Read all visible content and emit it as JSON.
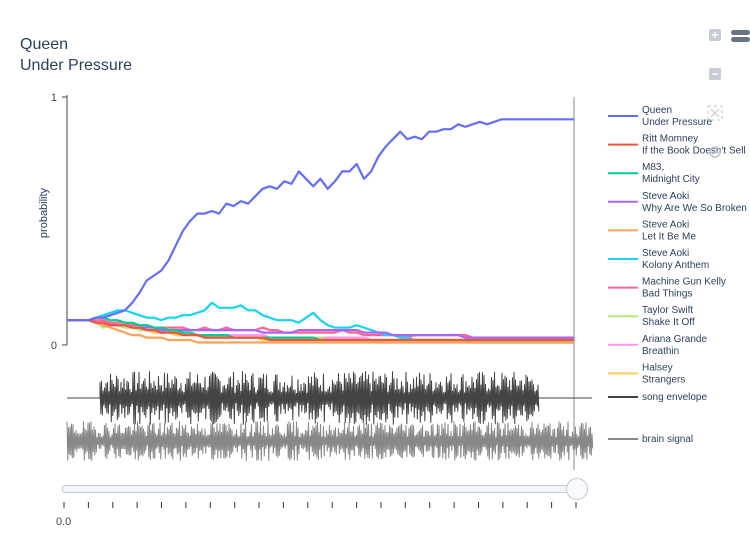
{
  "title": {
    "line1": "Queen",
    "line2": "Under Pressure"
  },
  "toolbar": {
    "zoom_in": "+",
    "zoom_out": "−"
  },
  "slider": {
    "current_label": "0.0",
    "position_fraction": 1.0,
    "tick_count": 22
  },
  "chart_data": {
    "type": "line",
    "ylabel": "probability",
    "ylim": [
      0,
      1
    ],
    "yticks": [
      "0",
      "1"
    ],
    "x": [
      0,
      1,
      2,
      3,
      4,
      5,
      6,
      7,
      8,
      9,
      10,
      11,
      12,
      13,
      14,
      15,
      16,
      17,
      18,
      19,
      20,
      21,
      22,
      23,
      24,
      25,
      26,
      27,
      28,
      29,
      30,
      31,
      32,
      33,
      34,
      35,
      36,
      37,
      38,
      39,
      40,
      41,
      42,
      43,
      44,
      45,
      46,
      47,
      48,
      49,
      50,
      51,
      52,
      53,
      54,
      55,
      56,
      57,
      58,
      59,
      60,
      61,
      62,
      63,
      64,
      65,
      66,
      67,
      68,
      69,
      70
    ],
    "series": [
      {
        "name": "Queen\nUnder Pressure",
        "color": "#636efa",
        "values": [
          0.1,
          0.1,
          0.1,
          0.1,
          0.11,
          0.11,
          0.12,
          0.13,
          0.14,
          0.17,
          0.21,
          0.26,
          0.28,
          0.3,
          0.34,
          0.4,
          0.46,
          0.5,
          0.53,
          0.53,
          0.54,
          0.53,
          0.57,
          0.56,
          0.58,
          0.57,
          0.6,
          0.63,
          0.64,
          0.63,
          0.66,
          0.65,
          0.7,
          0.67,
          0.64,
          0.67,
          0.63,
          0.66,
          0.7,
          0.7,
          0.73,
          0.67,
          0.7,
          0.76,
          0.8,
          0.83,
          0.86,
          0.83,
          0.84,
          0.83,
          0.86,
          0.86,
          0.87,
          0.87,
          0.89,
          0.88,
          0.89,
          0.9,
          0.89,
          0.9,
          0.91,
          0.91,
          0.91,
          0.91,
          0.91,
          0.91,
          0.91,
          0.91,
          0.91,
          0.91,
          0.91
        ]
      },
      {
        "name": "Ritt Momney\nIf the Book Doesn't Sell",
        "color": "#ef553b",
        "values": [
          0.1,
          0.1,
          0.1,
          0.1,
          0.09,
          0.09,
          0.08,
          0.08,
          0.08,
          0.07,
          0.07,
          0.06,
          0.06,
          0.05,
          0.05,
          0.05,
          0.04,
          0.04,
          0.04,
          0.03,
          0.03,
          0.03,
          0.03,
          0.03,
          0.03,
          0.03,
          0.03,
          0.03,
          0.02,
          0.02,
          0.02,
          0.02,
          0.02,
          0.02,
          0.02,
          0.02,
          0.02,
          0.02,
          0.02,
          0.02,
          0.02,
          0.02,
          0.02,
          0.02,
          0.02,
          0.02,
          0.02,
          0.02,
          0.02,
          0.02,
          0.02,
          0.02,
          0.02,
          0.02,
          0.02,
          0.02,
          0.02,
          0.02,
          0.02,
          0.02,
          0.02,
          0.02,
          0.02,
          0.02,
          0.02,
          0.02,
          0.02,
          0.02,
          0.02,
          0.02,
          0.02
        ]
      },
      {
        "name": "M83,\nMidnight City",
        "color": "#00cc96",
        "values": [
          0.1,
          0.1,
          0.1,
          0.1,
          0.11,
          0.11,
          0.1,
          0.1,
          0.09,
          0.09,
          0.08,
          0.08,
          0.07,
          0.07,
          0.06,
          0.06,
          0.05,
          0.05,
          0.04,
          0.04,
          0.04,
          0.04,
          0.04,
          0.03,
          0.03,
          0.03,
          0.03,
          0.03,
          0.03,
          0.03,
          0.03,
          0.03,
          0.03,
          0.03,
          0.03,
          0.02,
          0.02,
          0.02,
          0.02,
          0.02,
          0.02,
          0.02,
          0.02,
          0.02,
          0.02,
          0.02,
          0.02,
          0.02,
          0.02,
          0.02,
          0.02,
          0.02,
          0.02,
          0.02,
          0.02,
          0.02,
          0.02,
          0.02,
          0.02,
          0.02,
          0.02,
          0.02,
          0.02,
          0.02,
          0.02,
          0.02,
          0.02,
          0.02,
          0.02,
          0.02,
          0.02
        ]
      },
      {
        "name": "Steve Aoki\nWhy Are We So Broken",
        "color": "#ab63fa",
        "values": [
          0.1,
          0.1,
          0.1,
          0.1,
          0.09,
          0.09,
          0.08,
          0.08,
          0.08,
          0.07,
          0.07,
          0.07,
          0.07,
          0.06,
          0.06,
          0.06,
          0.06,
          0.06,
          0.06,
          0.06,
          0.06,
          0.06,
          0.06,
          0.06,
          0.06,
          0.06,
          0.06,
          0.05,
          0.05,
          0.05,
          0.05,
          0.05,
          0.06,
          0.06,
          0.06,
          0.06,
          0.06,
          0.06,
          0.06,
          0.06,
          0.06,
          0.05,
          0.05,
          0.05,
          0.05,
          0.04,
          0.04,
          0.04,
          0.04,
          0.04,
          0.04,
          0.04,
          0.04,
          0.04,
          0.04,
          0.03,
          0.03,
          0.03,
          0.03,
          0.03,
          0.03,
          0.03,
          0.03,
          0.03,
          0.03,
          0.03,
          0.03,
          0.03,
          0.03,
          0.03,
          0.03
        ]
      },
      {
        "name": "Steve Aoki\nLet It Be Me",
        "color": "#ffa15a",
        "values": [
          0.1,
          0.1,
          0.1,
          0.1,
          0.09,
          0.08,
          0.07,
          0.06,
          0.05,
          0.04,
          0.04,
          0.03,
          0.03,
          0.03,
          0.02,
          0.02,
          0.02,
          0.02,
          0.01,
          0.01,
          0.01,
          0.01,
          0.01,
          0.01,
          0.01,
          0.01,
          0.01,
          0.01,
          0.01,
          0.01,
          0.01,
          0.01,
          0.01,
          0.01,
          0.01,
          0.01,
          0.01,
          0.01,
          0.01,
          0.01,
          0.01,
          0.01,
          0.01,
          0.01,
          0.01,
          0.01,
          0.01,
          0.01,
          0.01,
          0.01,
          0.01,
          0.01,
          0.01,
          0.01,
          0.01,
          0.01,
          0.01,
          0.01,
          0.01,
          0.01,
          0.01,
          0.01,
          0.01,
          0.01,
          0.01,
          0.01,
          0.01,
          0.01,
          0.01,
          0.01,
          0.01
        ]
      },
      {
        "name": "Steve Aoki\nKolony Anthem",
        "color": "#19d3f3",
        "values": [
          0.1,
          0.1,
          0.1,
          0.1,
          0.11,
          0.12,
          0.13,
          0.14,
          0.14,
          0.13,
          0.12,
          0.11,
          0.11,
          0.1,
          0.11,
          0.11,
          0.12,
          0.12,
          0.13,
          0.14,
          0.17,
          0.15,
          0.15,
          0.15,
          0.16,
          0.14,
          0.14,
          0.12,
          0.11,
          0.1,
          0.1,
          0.1,
          0.09,
          0.11,
          0.13,
          0.1,
          0.08,
          0.07,
          0.07,
          0.07,
          0.08,
          0.07,
          0.06,
          0.05,
          0.04,
          0.04,
          0.03,
          0.03,
          0.02,
          0.02,
          0.02,
          0.02,
          0.02,
          0.02,
          0.02,
          0.02,
          0.01,
          0.01,
          0.01,
          0.01,
          0.01,
          0.01,
          0.01,
          0.01,
          0.01,
          0.01,
          0.01,
          0.01,
          0.01,
          0.01,
          0.01
        ]
      },
      {
        "name": "Machine Gun Kelly\nBad Things",
        "color": "#ff6692",
        "values": [
          0.1,
          0.1,
          0.1,
          0.1,
          0.1,
          0.1,
          0.09,
          0.09,
          0.09,
          0.08,
          0.08,
          0.08,
          0.07,
          0.07,
          0.07,
          0.07,
          0.07,
          0.06,
          0.06,
          0.07,
          0.06,
          0.06,
          0.07,
          0.06,
          0.06,
          0.06,
          0.06,
          0.07,
          0.06,
          0.06,
          0.05,
          0.05,
          0.05,
          0.05,
          0.05,
          0.05,
          0.05,
          0.05,
          0.06,
          0.05,
          0.05,
          0.04,
          0.04,
          0.04,
          0.04,
          0.04,
          0.04,
          0.03,
          0.04,
          0.04,
          0.04,
          0.04,
          0.04,
          0.04,
          0.04,
          0.04,
          0.03,
          0.03,
          0.03,
          0.03,
          0.03,
          0.03,
          0.03,
          0.03,
          0.03,
          0.03,
          0.03,
          0.03,
          0.03,
          0.03,
          0.03
        ]
      },
      {
        "name": "Taylor Swift\nShake It Off",
        "color": "#b6e880",
        "values": [
          0.1,
          0.1,
          0.1,
          0.1,
          0.09,
          0.07,
          0.08,
          0.08,
          0.07,
          0.07,
          0.06,
          0.06,
          0.06,
          0.05,
          0.05,
          0.05,
          0.05,
          0.04,
          0.04,
          0.04,
          0.04,
          0.04,
          0.04,
          0.03,
          0.03,
          0.03,
          0.03,
          0.03,
          0.03,
          0.03,
          0.03,
          0.03,
          0.03,
          0.03,
          0.03,
          0.03,
          0.02,
          0.02,
          0.02,
          0.02,
          0.02,
          0.02,
          0.02,
          0.02,
          0.02,
          0.02,
          0.02,
          0.02,
          0.02,
          0.02,
          0.02,
          0.02,
          0.02,
          0.02,
          0.02,
          0.02,
          0.02,
          0.02,
          0.02,
          0.02,
          0.02,
          0.02,
          0.02,
          0.02,
          0.02,
          0.02,
          0.02,
          0.02,
          0.02,
          0.02,
          0.02
        ]
      },
      {
        "name": "Ariana Grande\nBreathin",
        "color": "#ff97ff",
        "values": [
          0.1,
          0.1,
          0.1,
          0.1,
          0.1,
          0.09,
          0.09,
          0.08,
          0.08,
          0.07,
          0.07,
          0.06,
          0.06,
          0.06,
          0.05,
          0.05,
          0.05,
          0.05,
          0.04,
          0.04,
          0.04,
          0.04,
          0.04,
          0.04,
          0.04,
          0.04,
          0.04,
          0.04,
          0.03,
          0.03,
          0.03,
          0.03,
          0.03,
          0.03,
          0.03,
          0.03,
          0.03,
          0.03,
          0.03,
          0.03,
          0.03,
          0.03,
          0.02,
          0.02,
          0.02,
          0.02,
          0.02,
          0.02,
          0.02,
          0.02,
          0.02,
          0.02,
          0.02,
          0.02,
          0.02,
          0.02,
          0.02,
          0.02,
          0.02,
          0.02,
          0.02,
          0.02,
          0.02,
          0.02,
          0.02,
          0.02,
          0.02,
          0.02,
          0.02,
          0.02,
          0.02
        ]
      },
      {
        "name": "Halsey\nStrangers",
        "color": "#fecb52",
        "values": [
          0.1,
          0.1,
          0.1,
          0.1,
          0.09,
          0.09,
          0.08,
          0.08,
          0.07,
          0.07,
          0.06,
          0.06,
          0.05,
          0.05,
          0.05,
          0.04,
          0.04,
          0.04,
          0.04,
          0.03,
          0.03,
          0.03,
          0.03,
          0.03,
          0.03,
          0.03,
          0.03,
          0.02,
          0.02,
          0.02,
          0.02,
          0.02,
          0.02,
          0.02,
          0.02,
          0.02,
          0.02,
          0.02,
          0.02,
          0.02,
          0.02,
          0.02,
          0.02,
          0.01,
          0.01,
          0.01,
          0.01,
          0.01,
          0.01,
          0.01,
          0.01,
          0.01,
          0.01,
          0.01,
          0.01,
          0.01,
          0.01,
          0.01,
          0.01,
          0.01,
          0.01,
          0.01,
          0.01,
          0.01,
          0.01,
          0.01,
          0.01,
          0.01,
          0.01,
          0.01,
          0.01
        ]
      }
    ],
    "extra_traces": [
      {
        "name": "song envelope",
        "color": "#444444"
      },
      {
        "name": "brain signal",
        "color": "#888888"
      }
    ]
  }
}
